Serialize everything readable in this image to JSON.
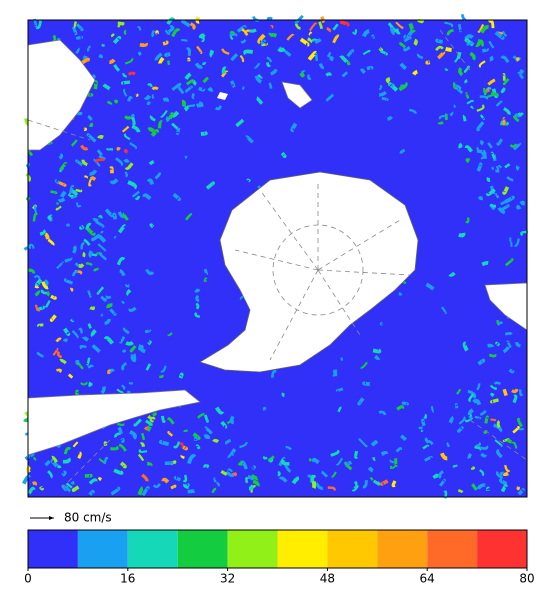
{
  "reference_arrow": {
    "label": "80 cm/s"
  },
  "colorbar": {
    "lim": [
      0,
      80
    ],
    "ticks": [
      0,
      16,
      32,
      48,
      64,
      80
    ],
    "colors": [
      "#3030f8",
      "#1aa0f0",
      "#14d8b8",
      "#14cc40",
      "#90f018",
      "#ffee00",
      "#ffc800",
      "#ffa010",
      "#ff6a28",
      "#ff3232"
    ]
  }
}
